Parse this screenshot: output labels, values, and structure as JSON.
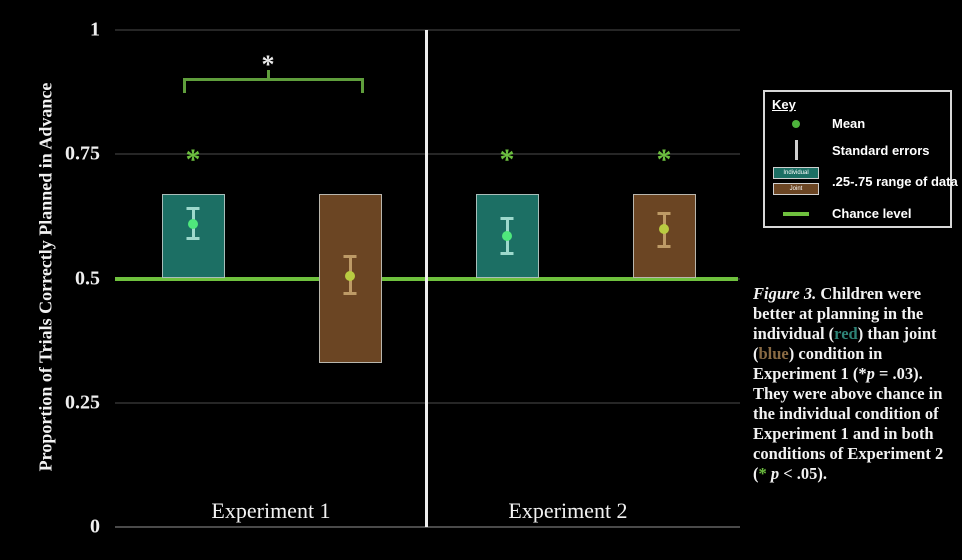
{
  "chart_data": {
    "type": "bar",
    "title": "",
    "ylabel": "Proportion of Trials Correctly Planned in Advance",
    "ylim": [
      0,
      1
    ],
    "grid": true,
    "yticks": [
      {
        "value": 0,
        "label": "0"
      },
      {
        "value": 0.25,
        "label": "0.25"
      },
      {
        "value": 0.5,
        "label": "0.5"
      },
      {
        "value": 0.75,
        "label": "0.75"
      },
      {
        "value": 1,
        "label": "1"
      }
    ],
    "groups": [
      {
        "label": "Experiment 1"
      },
      {
        "label": "Experiment 2"
      }
    ],
    "conditions": [
      {
        "name": "Individual",
        "bar_color": "#1c6f64",
        "whisker_color": "#9ed9cc",
        "dot_color": "#4fe87c"
      },
      {
        "name": "Joint",
        "bar_color": "#6b4523",
        "whisker_color": "#bd9a66",
        "dot_color": "#b9cc41"
      }
    ],
    "bars": [
      {
        "group": "Experiment 1",
        "condition": "Individual",
        "range_25_75": [
          0.5,
          0.67
        ],
        "mean": 0.61,
        "se_low": 0.58,
        "se_high": 0.64,
        "above_chance_star": true
      },
      {
        "group": "Experiment 1",
        "condition": "Joint",
        "range_25_75": [
          0.33,
          0.67
        ],
        "mean": 0.505,
        "se_low": 0.47,
        "se_high": 0.545,
        "above_chance_star": false
      },
      {
        "group": "Experiment 2",
        "condition": "Individual",
        "range_25_75": [
          0.5,
          0.67
        ],
        "mean": 0.585,
        "se_low": 0.55,
        "se_high": 0.62,
        "above_chance_star": true
      },
      {
        "group": "Experiment 2",
        "condition": "Joint",
        "range_25_75": [
          0.5,
          0.67
        ],
        "mean": 0.6,
        "se_low": 0.565,
        "se_high": 0.63,
        "above_chance_star": true
      }
    ],
    "chance_level": 0.5,
    "chance_color": "#6fc13e",
    "star_level": 0.75,
    "star_glyph": "*",
    "star_color": "#6cbf3f",
    "comparison_bracket": {
      "group": "Experiment 1",
      "star": "*",
      "star_color": "#eaeaea"
    },
    "legend_position": "right"
  },
  "key": {
    "title": "Key",
    "items": [
      {
        "marker": "dot",
        "label": "Mean"
      },
      {
        "marker": "vline",
        "label": "Standard errors"
      },
      {
        "marker": "swatches",
        "label": ".25-.75 range of data",
        "swatches": [
          {
            "label": "Individual",
            "color": "#1c6f64"
          },
          {
            "label": "Joint",
            "color": "#6b4523"
          }
        ]
      },
      {
        "marker": "hline",
        "label": "Chance level"
      }
    ]
  },
  "caption": {
    "segments": [
      {
        "text": "Figure 3.",
        "style": "italic"
      },
      {
        "text": " Children were better at planning in the individual (",
        "style": ""
      },
      {
        "text": "red",
        "style": "teal"
      },
      {
        "text": ") than joint (",
        "style": ""
      },
      {
        "text": "blue",
        "style": "brown"
      },
      {
        "text": ") condition in Experiment 1 (",
        "style": ""
      },
      {
        "text": "*",
        "style": "white"
      },
      {
        "text": "p",
        "style": "italic"
      },
      {
        "text": " = .03). They were above chance in the individual condition of Experiment 1 and in both conditions of Experiment 2 (",
        "style": ""
      },
      {
        "text": "*",
        "style": "green"
      },
      {
        "text": " ",
        "style": ""
      },
      {
        "text": "p",
        "style": "italic"
      },
      {
        "text": " < .05).",
        "style": ""
      }
    ]
  }
}
